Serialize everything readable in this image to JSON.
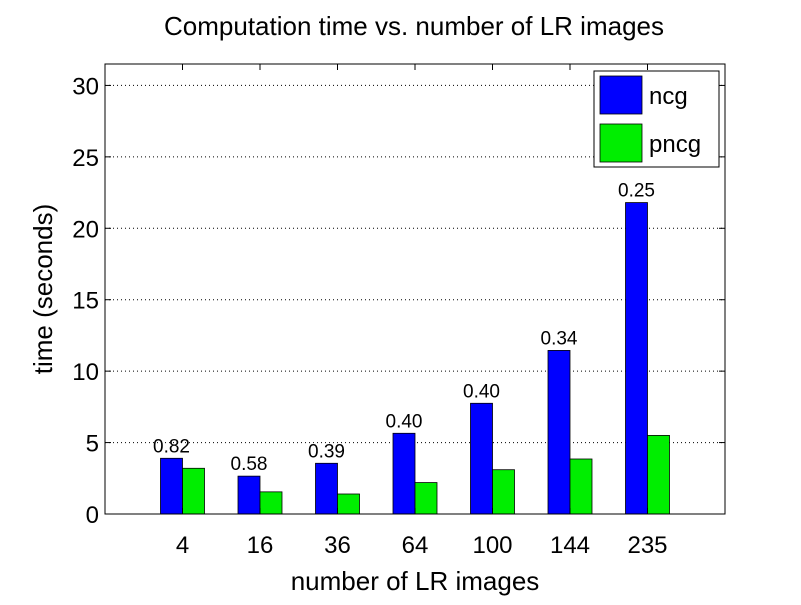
{
  "chart_data": {
    "type": "bar",
    "title": "Computation time vs. number of LR images",
    "xlabel": "number of LR images",
    "ylabel": "time (seconds)",
    "categories": [
      "4",
      "16",
      "36",
      "64",
      "100",
      "144",
      "235"
    ],
    "series": [
      {
        "name": "ncg",
        "color": "#0000ff",
        "values": [
          3.9,
          2.65,
          3.55,
          5.65,
          7.75,
          11.45,
          21.8
        ]
      },
      {
        "name": "pncg",
        "color": "#00ee00",
        "values": [
          3.2,
          1.55,
          1.4,
          2.2,
          3.1,
          3.85,
          5.5
        ]
      }
    ],
    "bar_labels": [
      "0.82",
      "0.58",
      "0.39",
      "0.40",
      "0.40",
      "0.34",
      "0.25"
    ],
    "ylim": [
      0,
      31.5
    ],
    "yticks": [
      0,
      5,
      10,
      15,
      20,
      25,
      30
    ],
    "grid": "y-dotted",
    "legend_position": "top-right"
  }
}
